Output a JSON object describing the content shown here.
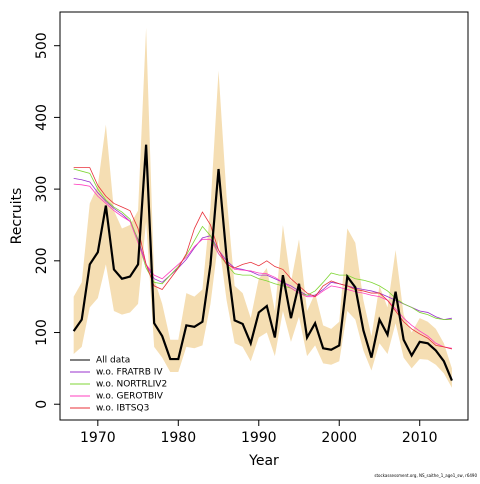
{
  "chart_data": {
    "type": "line",
    "xlabel": "Year",
    "ylabel": "Recruits",
    "footnote": "stockassessment.org, NS_saithe_1_age1_sw, r6490",
    "x": [
      1967,
      1968,
      1969,
      1970,
      1971,
      1972,
      1973,
      1974,
      1975,
      1976,
      1977,
      1978,
      1979,
      1980,
      1981,
      1982,
      1983,
      1984,
      1985,
      1986,
      1987,
      1988,
      1989,
      1990,
      1991,
      1992,
      1993,
      1994,
      1995,
      1996,
      1997,
      1998,
      1999,
      2000,
      2001,
      2002,
      2003,
      2004,
      2005,
      2006,
      2007,
      2008,
      2009,
      2010,
      2011,
      2012,
      2013,
      2014
    ],
    "band": {
      "color": "#f5deb3",
      "upper": [
        150,
        170,
        280,
        305,
        390,
        270,
        245,
        250,
        270,
        525,
        175,
        140,
        90,
        90,
        155,
        150,
        160,
        275,
        465,
        290,
        165,
        155,
        120,
        175,
        190,
        130,
        250,
        170,
        230,
        130,
        155,
        110,
        105,
        115,
        245,
        225,
        145,
        95,
        165,
        135,
        215,
        125,
        100,
        120,
        115,
        105,
        85,
        50
      ],
      "lower": [
        70,
        80,
        135,
        148,
        195,
        130,
        125,
        128,
        140,
        255,
        80,
        65,
        45,
        45,
        80,
        78,
        82,
        140,
        230,
        145,
        85,
        80,
        60,
        93,
        100,
        67,
        130,
        87,
        122,
        67,
        82,
        57,
        55,
        60,
        130,
        118,
        75,
        47,
        85,
        70,
        113,
        65,
        50,
        63,
        62,
        55,
        43,
        23
      ]
    },
    "series": [
      {
        "name": "All data",
        "color": "#000000",
        "values": [
          102,
          118,
          195,
          212,
          277,
          188,
          175,
          178,
          195,
          362,
          113,
          95,
          63,
          63,
          110,
          108,
          115,
          195,
          328,
          205,
          117,
          112,
          85,
          128,
          137,
          93,
          180,
          120,
          168,
          93,
          113,
          78,
          76,
          82,
          178,
          163,
          103,
          65,
          118,
          97,
          157,
          90,
          68,
          87,
          85,
          75,
          60,
          33
        ]
      },
      {
        "name": "w.o. FRATRB IV",
        "color": "#9932cc",
        "values": [
          315,
          313,
          310,
          295,
          283,
          273,
          265,
          255,
          230,
          195,
          175,
          170,
          180,
          190,
          202,
          218,
          232,
          235,
          215,
          200,
          190,
          188,
          185,
          180,
          180,
          175,
          170,
          165,
          158,
          152,
          152,
          160,
          170,
          168,
          165,
          162,
          160,
          158,
          155,
          150,
          145,
          140,
          135,
          130,
          128,
          122,
          118,
          120
        ]
      },
      {
        "name": "w.o. NORTRLIV2",
        "color": "#7fd635",
        "values": [
          328,
          325,
          322,
          300,
          285,
          275,
          268,
          258,
          228,
          190,
          170,
          168,
          180,
          192,
          208,
          228,
          248,
          235,
          210,
          195,
          182,
          180,
          180,
          175,
          172,
          168,
          165,
          162,
          155,
          152,
          158,
          170,
          183,
          180,
          180,
          175,
          173,
          170,
          165,
          158,
          148,
          140,
          135,
          128,
          125,
          120,
          118,
          118
        ]
      },
      {
        "name": "w.o. GEROTBIV",
        "color": "#ff3fbf",
        "values": [
          307,
          306,
          304,
          290,
          280,
          270,
          262,
          255,
          225,
          195,
          180,
          175,
          185,
          195,
          205,
          220,
          230,
          230,
          210,
          197,
          188,
          187,
          186,
          183,
          182,
          177,
          170,
          162,
          155,
          150,
          150,
          158,
          165,
          163,
          160,
          157,
          155,
          152,
          150,
          145,
          133,
          120,
          110,
          102,
          95,
          85,
          80,
          78
        ]
      },
      {
        "name": "w.o. IBTSQ3",
        "color": "#e8303a",
        "values": [
          330,
          330,
          330,
          305,
          290,
          280,
          275,
          270,
          245,
          195,
          165,
          160,
          175,
          190,
          210,
          245,
          268,
          250,
          215,
          195,
          190,
          195,
          198,
          193,
          200,
          192,
          188,
          175,
          165,
          155,
          150,
          165,
          172,
          168,
          165,
          160,
          158,
          155,
          155,
          145,
          130,
          115,
          105,
          98,
          92,
          82,
          80,
          77
        ]
      }
    ],
    "xlim": [
      1965.3,
      2016
    ],
    "ylim": [
      -22,
      547
    ],
    "xticks": [
      1970,
      1980,
      1990,
      2000,
      2010
    ],
    "yticks": [
      0,
      100,
      200,
      300,
      400,
      500
    ],
    "legend": "bottom-left"
  }
}
